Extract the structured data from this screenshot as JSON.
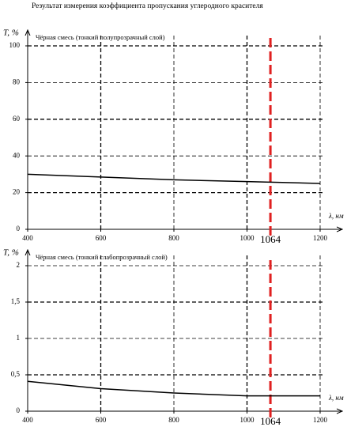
{
  "title": "Результат измерения коэффициента пропускания углеродного красителя",
  "chart_data": [
    {
      "type": "line",
      "title": "Чёрная смесь (тонкий полупрозрачный слой)",
      "ylabel": "T, %",
      "xlabel": "λ, нм",
      "x": [
        400,
        600,
        800,
        1000,
        1200
      ],
      "values": [
        30,
        28.5,
        27,
        26,
        25
      ],
      "color": "#000000",
      "xlim": [
        400,
        1200
      ],
      "xticks": [
        400,
        600,
        800,
        1000,
        1200
      ],
      "ylim": [
        0,
        100
      ],
      "yticks": [
        0,
        20,
        40,
        60,
        80,
        100
      ],
      "grid": true,
      "marker_x": 1064,
      "marker_color": "#e02020"
    },
    {
      "type": "line",
      "title": "Чёрная смесь (тонкий слабопрозрачный слой)",
      "ylabel": "T, %",
      "xlabel": "λ, нм",
      "x": [
        400,
        600,
        800,
        1000,
        1200
      ],
      "values": [
        0.41,
        0.31,
        0.25,
        0.21,
        0.21
      ],
      "color": "#000000",
      "xlim": [
        400,
        1200
      ],
      "xticks": [
        400,
        600,
        800,
        1000,
        1200
      ],
      "ylim": [
        0,
        2
      ],
      "yticks": [
        0,
        {
          "value": 0.5,
          "label": "0,5"
        },
        1,
        {
          "value": 1.5,
          "label": "1,5"
        },
        2
      ],
      "grid": true,
      "marker_x": 1064,
      "marker_color": "#e02020"
    }
  ]
}
